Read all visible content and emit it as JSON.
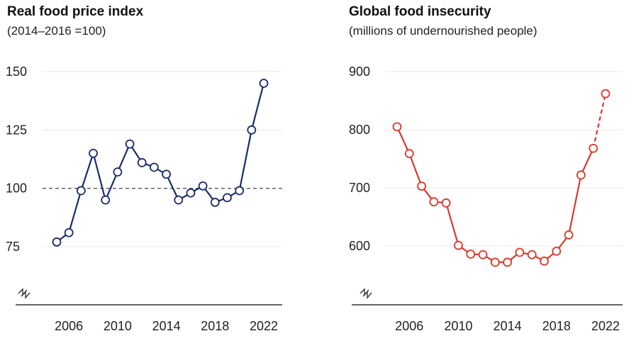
{
  "chart_data": [
    {
      "type": "line",
      "title": "Real food price index",
      "subtitle": "(2014–2016 =100)",
      "xlabel": "",
      "ylabel": "",
      "x": [
        2005,
        2006,
        2007,
        2008,
        2009,
        2010,
        2011,
        2012,
        2013,
        2014,
        2015,
        2016,
        2017,
        2018,
        2019,
        2020,
        2021,
        2022
      ],
      "series": [
        {
          "values": [
            77,
            81,
            99,
            115,
            95,
            107,
            119,
            111,
            109,
            106,
            95,
            98,
            101,
            94,
            96,
            99,
            125,
            145
          ]
        }
      ],
      "ylim": [
        60,
        155
      ],
      "xlim": [
        2004,
        2023
      ],
      "yticks": [
        75,
        100,
        125,
        150
      ],
      "ytick_labels": [
        "75",
        "100",
        "125",
        "150"
      ],
      "xticks": [
        2006,
        2010,
        2014,
        2018,
        2022
      ],
      "xtick_labels": [
        "2006",
        "2010",
        "2014",
        "2018",
        "2022"
      ],
      "reference_line": 100,
      "axis_break": true,
      "color": "#1a2c6b",
      "grid": true
    },
    {
      "type": "line",
      "title": "Global food insecurity",
      "subtitle": "(millions of undernourished people)",
      "xlabel": "",
      "ylabel": "",
      "x": [
        2005,
        2006,
        2007,
        2008,
        2009,
        2010,
        2011,
        2012,
        2013,
        2014,
        2015,
        2016,
        2017,
        2018,
        2019,
        2020,
        2021,
        2022
      ],
      "series": [
        {
          "values": [
            805,
            759,
            703,
            676,
            674,
            601,
            586,
            585,
            572,
            572,
            589,
            585,
            574,
            591,
            619,
            722,
            768,
            862
          ],
          "dashed_from_index": 16
        }
      ],
      "ylim": [
        510,
        920
      ],
      "xlim": [
        2004,
        2023
      ],
      "yticks": [
        600,
        700,
        800,
        900
      ],
      "ytick_labels": [
        "600",
        "700",
        "800",
        "900"
      ],
      "xticks": [
        2006,
        2010,
        2014,
        2018,
        2022
      ],
      "xtick_labels": [
        "2006",
        "2010",
        "2014",
        "2018",
        "2022"
      ],
      "axis_break": true,
      "color": "#d93a2b",
      "grid": true
    }
  ]
}
